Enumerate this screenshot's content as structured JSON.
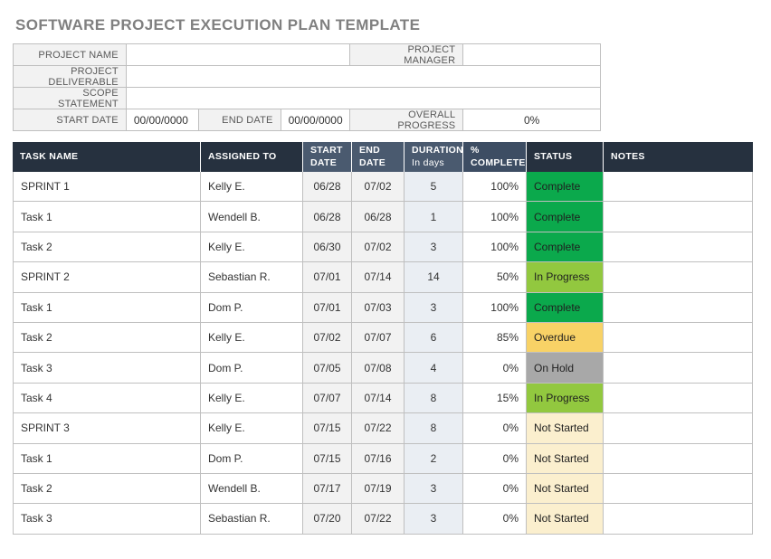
{
  "title": "SOFTWARE PROJECT EXECUTION PLAN TEMPLATE",
  "form": {
    "project_name": {
      "label": "PROJECT NAME",
      "value": ""
    },
    "project_manager": {
      "label": "PROJECT MANAGER",
      "value": ""
    },
    "project_deliverable": {
      "label": "PROJECT DELIVERABLE",
      "value": ""
    },
    "scope_statement": {
      "label": "SCOPE STATEMENT",
      "value": ""
    },
    "start_date": {
      "label": "START DATE",
      "value": "00/00/0000"
    },
    "end_date": {
      "label": "END DATE",
      "value": "00/00/0000"
    },
    "overall_progress": {
      "label": "OVERALL PROGRESS",
      "value": "0%"
    }
  },
  "table": {
    "columns": [
      {
        "line1": "TASK NAME",
        "line2": "",
        "variant": "dark"
      },
      {
        "line1": "ASSIGNED TO",
        "line2": "",
        "variant": "dark"
      },
      {
        "line1": "START",
        "line2": "DATE",
        "variant": "slate"
      },
      {
        "line1": "END",
        "line2": "DATE",
        "variant": "slate"
      },
      {
        "line1": "DURATION",
        "line2": "In days",
        "variant": "slate"
      },
      {
        "line1": "%",
        "line2": "COMPLETE",
        "variant": "pct"
      },
      {
        "line1": "STATUS",
        "line2": "",
        "variant": "dark"
      },
      {
        "line1": "NOTES",
        "line2": "",
        "variant": "dark"
      }
    ],
    "rows": [
      {
        "task": "SPRINT 1",
        "assigned": "Kelly E.",
        "start": "06/28",
        "end": "07/02",
        "duration": "5",
        "pct": "100%",
        "status": "Complete",
        "notes": ""
      },
      {
        "task": "Task 1",
        "assigned": "Wendell B.",
        "start": "06/28",
        "end": "06/28",
        "duration": "1",
        "pct": "100%",
        "status": "Complete",
        "notes": ""
      },
      {
        "task": "Task 2",
        "assigned": "Kelly E.",
        "start": "06/30",
        "end": "07/02",
        "duration": "3",
        "pct": "100%",
        "status": "Complete",
        "notes": ""
      },
      {
        "task": "SPRINT 2",
        "assigned": "Sebastian R.",
        "start": "07/01",
        "end": "07/14",
        "duration": "14",
        "pct": "50%",
        "status": "In Progress",
        "notes": ""
      },
      {
        "task": "Task 1",
        "assigned": "Dom P.",
        "start": "07/01",
        "end": "07/03",
        "duration": "3",
        "pct": "100%",
        "status": "Complete",
        "notes": ""
      },
      {
        "task": "Task 2",
        "assigned": "Kelly E.",
        "start": "07/02",
        "end": "07/07",
        "duration": "6",
        "pct": "85%",
        "status": "Overdue",
        "notes": ""
      },
      {
        "task": "Task 3",
        "assigned": "Dom P.",
        "start": "07/05",
        "end": "07/08",
        "duration": "4",
        "pct": "0%",
        "status": "On Hold",
        "notes": ""
      },
      {
        "task": "Task 4",
        "assigned": "Kelly E.",
        "start": "07/07",
        "end": "07/14",
        "duration": "8",
        "pct": "15%",
        "status": "In Progress",
        "notes": ""
      },
      {
        "task": "SPRINT 3",
        "assigned": "Kelly E.",
        "start": "07/15",
        "end": "07/22",
        "duration": "8",
        "pct": "0%",
        "status": "Not Started",
        "notes": ""
      },
      {
        "task": "Task 1",
        "assigned": "Dom P.",
        "start": "07/15",
        "end": "07/16",
        "duration": "2",
        "pct": "0%",
        "status": "Not Started",
        "notes": ""
      },
      {
        "task": "Task 2",
        "assigned": "Wendell B.",
        "start": "07/17",
        "end": "07/19",
        "duration": "3",
        "pct": "0%",
        "status": "Not Started",
        "notes": ""
      },
      {
        "task": "Task 3",
        "assigned": "Sebastian R.",
        "start": "07/20",
        "end": "07/22",
        "duration": "3",
        "pct": "0%",
        "status": "Not Started",
        "notes": ""
      }
    ]
  },
  "colors": {
    "title_gray": "#808080",
    "header_dark": "#26313F",
    "header_slate": "#4A5A6F",
    "header_pct": "#3D4D63",
    "status": {
      "Complete": "#0BA94C",
      "In Progress": "#92C83F",
      "Overdue": "#F8D266",
      "On Hold": "#A8A8A8",
      "Not Started": "#FBEFCE"
    }
  }
}
